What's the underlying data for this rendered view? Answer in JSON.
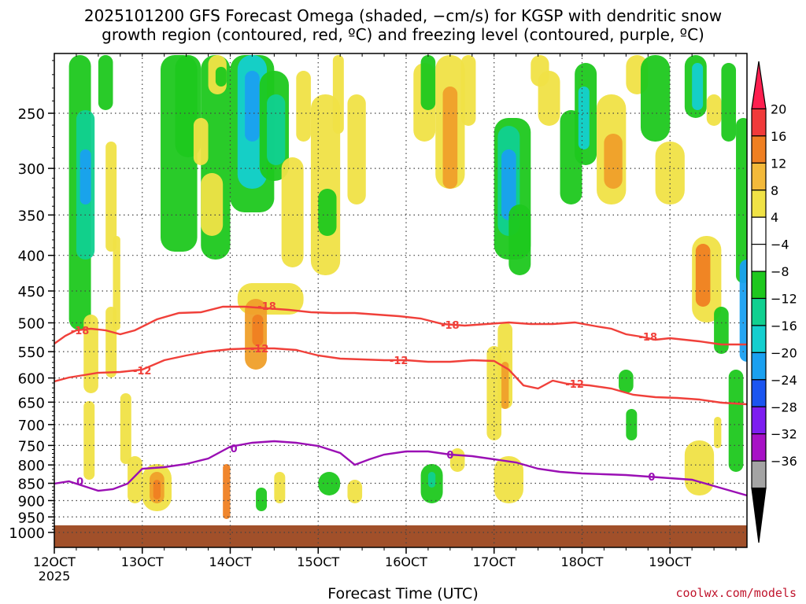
{
  "chart_data": {
    "type": "heatmap",
    "title_lines": [
      "2025101200 GFS Forecast Omega (shaded, −cm/s) for KGSP with dendritic snow",
      "growth region (contoured, red, ºC) and freezing level (contoured, purple, ºC)"
    ],
    "xlabel": "Forecast Time (UTC)",
    "x_ticks": [
      "12OCT",
      "13OCT",
      "14OCT",
      "15OCT",
      "16OCT",
      "17OCT",
      "18OCT",
      "19OCT"
    ],
    "x_year": "2025",
    "x_range_hours": [
      0,
      189
    ],
    "y_ticks": [
      250,
      300,
      350,
      400,
      450,
      500,
      550,
      600,
      650,
      700,
      750,
      800,
      850,
      900,
      950,
      1000
    ],
    "y_range_hpa": [
      200,
      1025
    ],
    "y_scale": "log-pressure",
    "colorbar_ticks": [
      "20",
      "16",
      "12",
      "8",
      "4",
      "−4",
      "−8",
      "−12",
      "−16",
      "−20",
      "−24",
      "−28",
      "−32",
      "−36"
    ],
    "colorbar_colors": [
      "#fe1f4f",
      "#f03a3a",
      "#ef7f22",
      "#f3b93a",
      "#f0e246",
      "#ffffff",
      "#ffffff",
      "#1ec81e",
      "#10d090",
      "#14cfcf",
      "#1aa0f0",
      "#1b55f0",
      "#7d1ef0",
      "#a711c6",
      "#a4a4a4",
      "#000000"
    ],
    "contours": [
      {
        "label": "-18",
        "color": "#f0403a",
        "points": [
          [
            0,
            437
          ],
          [
            3,
            427
          ],
          [
            6,
            420
          ],
          [
            10,
            418
          ],
          [
            14,
            420
          ],
          [
            18,
            425
          ],
          [
            22,
            420
          ],
          [
            28,
            406
          ],
          [
            34,
            398
          ],
          [
            40,
            397
          ],
          [
            46,
            390
          ],
          [
            52,
            390
          ],
          [
            58,
            392
          ],
          [
            64,
            394
          ],
          [
            70,
            397
          ],
          [
            76,
            398
          ],
          [
            82,
            398
          ],
          [
            88,
            400
          ],
          [
            94,
            402
          ],
          [
            100,
            405
          ],
          [
            106,
            412
          ],
          [
            112,
            414
          ],
          [
            118,
            412
          ],
          [
            124,
            410
          ],
          [
            130,
            412
          ],
          [
            136,
            412
          ],
          [
            142,
            410
          ],
          [
            148,
            415
          ],
          [
            152,
            418
          ],
          [
            156,
            425
          ],
          [
            160,
            428
          ],
          [
            164,
            432
          ],
          [
            168,
            430
          ],
          [
            172,
            432
          ],
          [
            176,
            434
          ],
          [
            182,
            438
          ],
          [
            189,
            438
          ]
        ],
        "label_at": [
          [
            7,
            420
          ],
          [
            58,
            389
          ],
          [
            108,
            413
          ],
          [
            162,
            428
          ]
        ]
      },
      {
        "label": "-12",
        "color": "#f0403a",
        "points": [
          [
            0,
            485
          ],
          [
            4,
            480
          ],
          [
            8,
            477
          ],
          [
            12,
            474
          ],
          [
            18,
            473
          ],
          [
            24,
            470
          ],
          [
            30,
            458
          ],
          [
            36,
            452
          ],
          [
            42,
            447
          ],
          [
            48,
            444
          ],
          [
            54,
            443
          ],
          [
            60,
            443
          ],
          [
            66,
            445
          ],
          [
            72,
            452
          ],
          [
            78,
            456
          ],
          [
            84,
            457
          ],
          [
            90,
            458
          ],
          [
            96,
            458
          ],
          [
            102,
            460
          ],
          [
            108,
            460
          ],
          [
            114,
            458
          ],
          [
            120,
            459
          ],
          [
            124,
            470
          ],
          [
            128,
            490
          ],
          [
            132,
            494
          ],
          [
            136,
            484
          ],
          [
            140,
            488
          ],
          [
            146,
            490
          ],
          [
            152,
            494
          ],
          [
            158,
            502
          ],
          [
            164,
            505
          ],
          [
            170,
            506
          ],
          [
            176,
            508
          ],
          [
            182,
            512
          ],
          [
            189,
            514
          ]
        ],
        "label_at": [
          [
            24,
            471
          ],
          [
            56,
            443
          ],
          [
            94,
            458
          ],
          [
            142,
            488
          ]
        ]
      },
      {
        "label": "0",
        "color": "#9a0fb4",
        "points": [
          [
            0,
            615
          ],
          [
            4,
            612
          ],
          [
            8,
            618
          ],
          [
            12,
            624
          ],
          [
            16,
            622
          ],
          [
            20,
            615
          ],
          [
            24,
            596
          ],
          [
            30,
            594
          ],
          [
            36,
            590
          ],
          [
            42,
            583
          ],
          [
            48,
            568
          ],
          [
            54,
            563
          ],
          [
            60,
            561
          ],
          [
            66,
            563
          ],
          [
            72,
            567
          ],
          [
            78,
            576
          ],
          [
            82,
            591
          ],
          [
            86,
            584
          ],
          [
            90,
            578
          ],
          [
            96,
            574
          ],
          [
            102,
            574
          ],
          [
            108,
            578
          ],
          [
            114,
            580
          ],
          [
            120,
            584
          ],
          [
            126,
            588
          ],
          [
            132,
            596
          ],
          [
            138,
            600
          ],
          [
            144,
            602
          ],
          [
            150,
            603
          ],
          [
            156,
            604
          ],
          [
            162,
            606
          ],
          [
            168,
            608
          ],
          [
            174,
            610
          ],
          [
            180,
            618
          ],
          [
            189,
            630
          ]
        ],
        "label_at": [
          [
            7,
            612
          ],
          [
            49,
            570
          ],
          [
            108,
            578
          ],
          [
            163,
            606
          ]
        ]
      }
    ]
  }
}
